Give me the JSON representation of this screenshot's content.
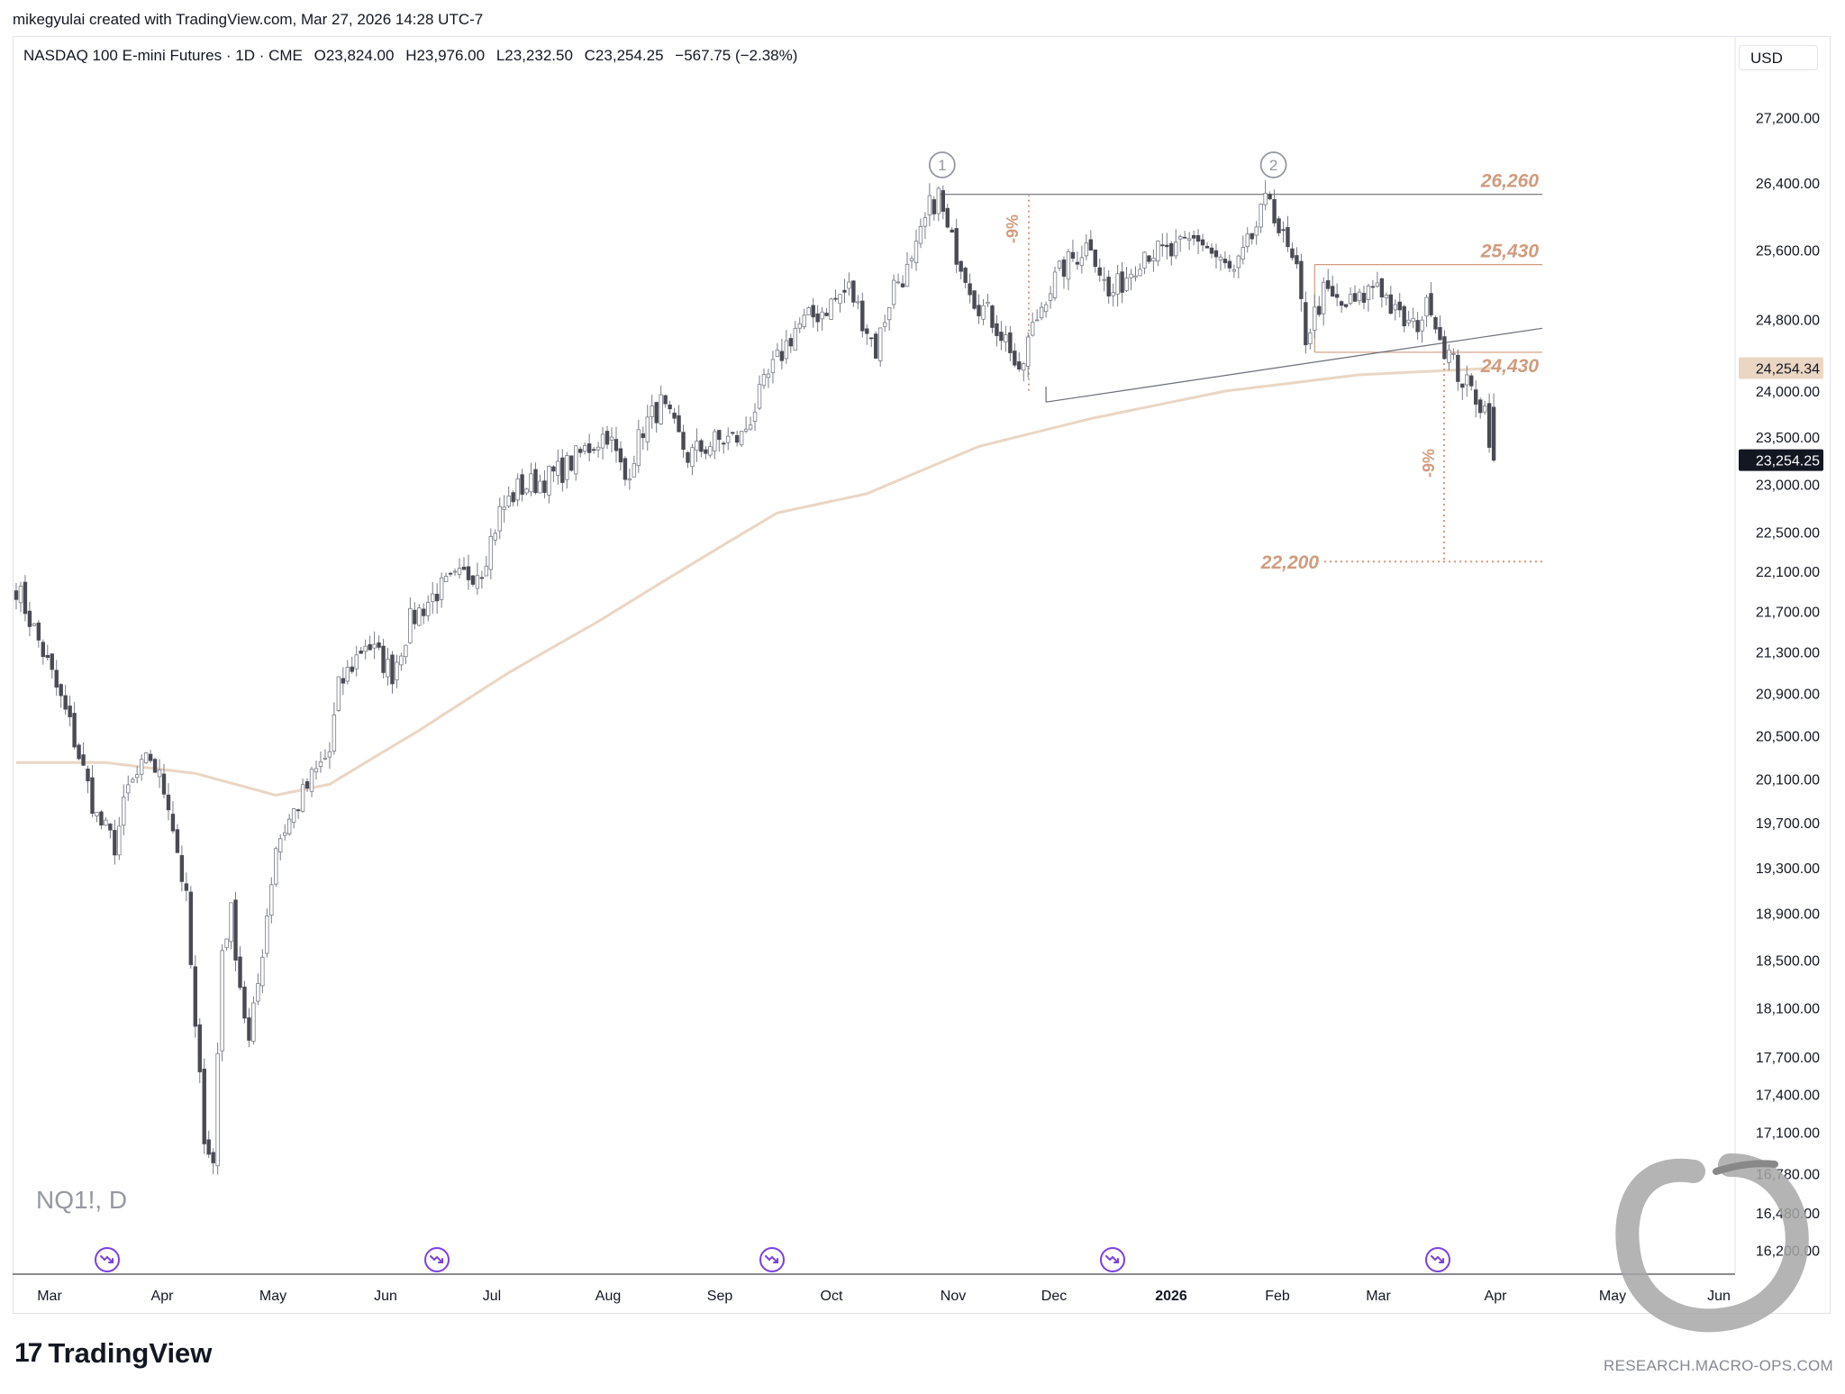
{
  "header": {
    "caption": "mikegyulai created with TradingView.com, Mar 27, 2026 14:28 UTC-7",
    "instrument": "NASDAQ 100 E-mini Futures · 1D · CME",
    "open": "O23,824.00",
    "high": "H23,976.00",
    "low": "L23,232.50",
    "close": "C23,254.25",
    "change": "−567.75 (−2.38%)",
    "currency": "USD"
  },
  "symbol_label": "NQ1!, D",
  "branding": {
    "logo_mark": "17",
    "logo_text": "TradingView",
    "url": "RESEARCH.MACRO-OPS.COM"
  },
  "colors": {
    "up_body": "#ffffff",
    "down_body": "#4a4a55",
    "wick": "#787b86",
    "ma": "#ead6c3",
    "annotation": "#d29a7d",
    "trendline": "#6a6d78",
    "event_icon": "#7b3fe4"
  },
  "chart_data": {
    "type": "candlestick",
    "title": "",
    "timeframe": "1D",
    "price_scale": "log",
    "ylim": [
      15900,
      27800
    ],
    "xaxis": {
      "labels": [
        "Mar",
        "Apr",
        "May",
        "Jun",
        "Jul",
        "Aug",
        "Sep",
        "Oct",
        "Nov",
        "Dec",
        "2026",
        "Feb",
        "Mar",
        "Apr",
        "May",
        "Jun"
      ],
      "bold_label": "2026"
    },
    "yaxis": {
      "tick_labels": [
        "27,200.00",
        "26,400.00",
        "25,600.00",
        "24,800.00",
        "24,000.00",
        "23,500.00",
        "23,000.00",
        "22,500.00",
        "22,100.00",
        "21,700.00",
        "21,300.00",
        "20,900.00",
        "20,500.00",
        "20,100.00",
        "19,700.00",
        "19,300.00",
        "18,900.00",
        "18,500.00",
        "18,100.00",
        "17,700.00",
        "17,400.00",
        "17,100.00",
        "16,780.00",
        "16,480.00",
        "16,200.00"
      ],
      "tick_values": [
        27200,
        26400,
        25600,
        24800,
        24000,
        23500,
        23000,
        22500,
        22100,
        21700,
        21300,
        20900,
        20500,
        20100,
        19700,
        19300,
        18900,
        18500,
        18100,
        17700,
        17400,
        17100,
        16780,
        16480,
        16200
      ]
    },
    "price_path": {
      "note": "approximate daily closes, index 0 = first visible bar (late Feb 2025), last index = Mar 27 2026",
      "anchors": [
        [
          0,
          21950
        ],
        [
          6,
          21300
        ],
        [
          12,
          20600
        ],
        [
          18,
          19750
        ],
        [
          22,
          19500
        ],
        [
          25,
          20000
        ],
        [
          30,
          20300
        ],
        [
          34,
          19900
        ],
        [
          38,
          19000
        ],
        [
          40,
          17900
        ],
        [
          42,
          17100
        ],
        [
          44,
          16850
        ],
        [
          46,
          18600
        ],
        [
          48,
          18900
        ],
        [
          50,
          18300
        ],
        [
          52,
          17800
        ],
        [
          54,
          18300
        ],
        [
          58,
          19500
        ],
        [
          62,
          19800
        ],
        [
          66,
          20100
        ],
        [
          70,
          20350
        ],
        [
          72,
          20950
        ],
        [
          78,
          21400
        ],
        [
          84,
          21100
        ],
        [
          88,
          21600
        ],
        [
          94,
          21900
        ],
        [
          100,
          22050
        ],
        [
          104,
          22150
        ],
        [
          108,
          22700
        ],
        [
          112,
          22950
        ],
        [
          118,
          23050
        ],
        [
          122,
          23150
        ],
        [
          128,
          23400
        ],
        [
          132,
          23550
        ],
        [
          136,
          23050
        ],
        [
          140,
          23600
        ],
        [
          144,
          23850
        ],
        [
          150,
          23300
        ],
        [
          156,
          23450
        ],
        [
          162,
          23500
        ],
        [
          168,
          24150
        ],
        [
          174,
          24700
        ],
        [
          180,
          24900
        ],
        [
          186,
          25150
        ],
        [
          190,
          24700
        ],
        [
          192,
          24450
        ],
        [
          196,
          25200
        ],
        [
          200,
          25400
        ],
        [
          204,
          26100
        ],
        [
          206,
          26250
        ],
        [
          208,
          25800
        ],
        [
          212,
          25350
        ],
        [
          214,
          25050
        ],
        [
          218,
          24800
        ],
        [
          222,
          24500
        ],
        [
          224,
          24100
        ],
        [
          226,
          24550
        ],
        [
          230,
          25100
        ],
        [
          234,
          25400
        ],
        [
          240,
          25700
        ],
        [
          244,
          25050
        ],
        [
          248,
          25300
        ],
        [
          252,
          25600
        ],
        [
          258,
          25550
        ],
        [
          264,
          25750
        ],
        [
          268,
          25500
        ],
        [
          272,
          25300
        ],
        [
          276,
          25750
        ],
        [
          280,
          26250
        ],
        [
          282,
          25850
        ],
        [
          286,
          25300
        ],
        [
          288,
          24600
        ],
        [
          292,
          25100
        ],
        [
          296,
          24950
        ],
        [
          300,
          25000
        ],
        [
          304,
          25250
        ],
        [
          308,
          24850
        ],
        [
          312,
          24700
        ],
        [
          316,
          25000
        ],
        [
          318,
          24600
        ],
        [
          320,
          24400
        ],
        [
          322,
          24200
        ],
        [
          324,
          24050
        ],
        [
          326,
          23950
        ],
        [
          328,
          23800
        ],
        [
          330,
          23254
        ]
      ]
    },
    "moving_average": {
      "label": "24,254.34",
      "path": [
        [
          0,
          20250
        ],
        [
          20,
          20250
        ],
        [
          40,
          20150
        ],
        [
          58,
          19950
        ],
        [
          70,
          20050
        ],
        [
          90,
          20550
        ],
        [
          110,
          21100
        ],
        [
          130,
          21600
        ],
        [
          150,
          22150
        ],
        [
          170,
          22700
        ],
        [
          190,
          22900
        ],
        [
          200,
          23100
        ],
        [
          215,
          23400
        ],
        [
          240,
          23700
        ],
        [
          270,
          24000
        ],
        [
          300,
          24180
        ],
        [
          330,
          24254
        ]
      ]
    },
    "levels": [
      {
        "label": "26,260",
        "value": 26260
      },
      {
        "label": "25,430",
        "value": 25430
      },
      {
        "label": "24,430",
        "value": 24430
      },
      {
        "label": "22,200",
        "value": 22200
      }
    ],
    "pivots": [
      {
        "label": "1",
        "bar": 206
      },
      {
        "label": "2",
        "bar": 280
      }
    ],
    "drawdown_labels": [
      "-9%",
      "-9%"
    ],
    "price_tags": [
      {
        "label": "24,254.34",
        "value": 24254.34,
        "kind": "ma"
      },
      {
        "label": "23,254.25",
        "value": 23254.25,
        "kind": "last"
      }
    ],
    "event_markers": 5
  }
}
